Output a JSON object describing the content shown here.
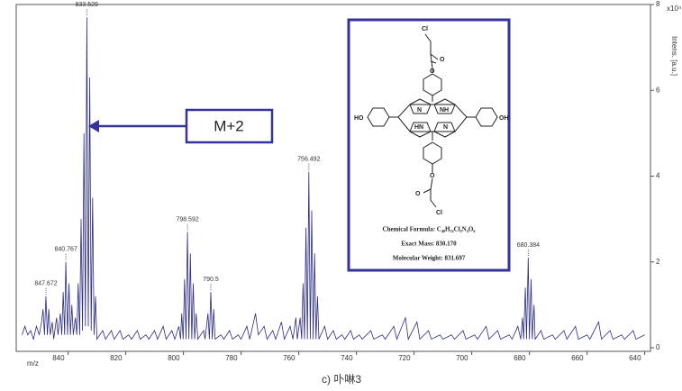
{
  "chart_data": {
    "type": "line",
    "color": "#2b2b80",
    "x": [
      856,
      855,
      854,
      853,
      852,
      851,
      850,
      849.2,
      848.7,
      848.2,
      847.7,
      847.2,
      846.7,
      846.2,
      845.5,
      845,
      844,
      843.5,
      842.7,
      842.2,
      841.7,
      841.2,
      840.8,
      840.2,
      839.7,
      839.2,
      838.7,
      838.2,
      837.5,
      837,
      836.5,
      836,
      835.5,
      835,
      834.5,
      834,
      833.5,
      833,
      832.5,
      832,
      831.5,
      831,
      830.5,
      830,
      828,
      827,
      825,
      824,
      822,
      821,
      819,
      818,
      816,
      815,
      813,
      812,
      810,
      809,
      807,
      806,
      804,
      803,
      801.6,
      801,
      800.6,
      800.1,
      799.6,
      799.1,
      798.6,
      798.1,
      797.6,
      797.1,
      796.6,
      796.1,
      795.6,
      795,
      793,
      792.5,
      791.5,
      791,
      790.5,
      790,
      789.5,
      789,
      787,
      786,
      784,
      783,
      781,
      780,
      778,
      777,
      775,
      774,
      772,
      771,
      769,
      768,
      766,
      765,
      763,
      762,
      761,
      760.5,
      759.5,
      759,
      758.5,
      758,
      757.5,
      757,
      756.5,
      756,
      755.5,
      755,
      754.5,
      754,
      753.5,
      753,
      751,
      750,
      748,
      747,
      745,
      744,
      742,
      741,
      739,
      738,
      735,
      734,
      731,
      730,
      727,
      726,
      723,
      722,
      719,
      718,
      715,
      714,
      711,
      710,
      707,
      706,
      703,
      702,
      699,
      698,
      695,
      694,
      691,
      690,
      687,
      686,
      684,
      683,
      682.4,
      682,
      681.4,
      681,
      680.4,
      680,
      679.4,
      679,
      678.4,
      678,
      676,
      675,
      672,
      671,
      668,
      667,
      664,
      663,
      660,
      659,
      656,
      655,
      652,
      651,
      648,
      647,
      644,
      643,
      640
    ],
    "values": [
      0.3,
      0.5,
      0.3,
      0.4,
      0.2,
      0.5,
      0.3,
      0.6,
      0.9,
      0.3,
      1.2,
      0.3,
      0.9,
      0.3,
      0.6,
      0.2,
      0.7,
      0.3,
      0.8,
      0.3,
      1.3,
      0.3,
      2.0,
      0.3,
      1.5,
      0.3,
      1.0,
      0.3,
      0.7,
      0.3,
      1.5,
      0.3,
      3.0,
      0.4,
      5.0,
      0.5,
      7.7,
      0.5,
      6.3,
      0.4,
      3.5,
      0.3,
      1.2,
      0.2,
      0.4,
      0.2,
      0.4,
      0.2,
      0.4,
      0.2,
      0.3,
      0.2,
      0.4,
      0.2,
      0.3,
      0.2,
      0.4,
      0.2,
      0.5,
      0.2,
      0.4,
      0.2,
      0.5,
      0.2,
      0.8,
      0.2,
      1.6,
      0.2,
      2.7,
      0.2,
      2.2,
      0.2,
      1.5,
      0.2,
      0.8,
      0.2,
      0.4,
      0.2,
      0.8,
      0.2,
      1.3,
      0.2,
      0.9,
      0.2,
      0.3,
      0.2,
      0.4,
      0.2,
      0.3,
      0.2,
      0.5,
      0.2,
      0.8,
      0.3,
      0.5,
      0.2,
      0.4,
      0.2,
      0.6,
      0.2,
      0.5,
      0.2,
      0.7,
      0.2,
      0.7,
      0.2,
      1.5,
      0.2,
      2.8,
      0.2,
      4.1,
      0.2,
      3.2,
      0.2,
      2.2,
      0.2,
      1.2,
      0.2,
      0.5,
      0.2,
      0.4,
      0.2,
      0.3,
      0.2,
      0.4,
      0.2,
      0.3,
      0.2,
      0.4,
      0.2,
      0.3,
      0.2,
      0.5,
      0.2,
      0.7,
      0.2,
      0.6,
      0.2,
      0.4,
      0.2,
      0.3,
      0.2,
      0.3,
      0.2,
      0.4,
      0.2,
      0.3,
      0.2,
      0.5,
      0.2,
      0.4,
      0.2,
      0.3,
      0.2,
      0.5,
      0.2,
      0.7,
      0.2,
      1.4,
      0.2,
      2.1,
      0.2,
      1.6,
      0.2,
      1.0,
      0.2,
      0.4,
      0.2,
      0.3,
      0.2,
      0.4,
      0.2,
      0.5,
      0.2,
      0.3,
      0.2,
      0.6,
      0.2,
      0.4,
      0.2,
      0.3,
      0.2,
      0.4,
      0.2,
      0.3
    ],
    "peak_labels": [
      833.529,
      840.767,
      847.672,
      798.592,
      790.5,
      756.492,
      680.384
    ],
    "xlim": [
      858,
      638
    ],
    "xticks": [
      640,
      660,
      680,
      700,
      720,
      740,
      760,
      780,
      800,
      820,
      840
    ],
    "ylim": [
      0,
      8
    ],
    "yticks": [
      0,
      2,
      4,
      6,
      8
    ],
    "xlabel": "m/z",
    "ylabel": "Intens. [a.u.]",
    "yscale_label": "x10⁴",
    "arrow_label": "M+2",
    "molecule": {
      "labels": [
        "Cl",
        "O",
        "O",
        "N",
        "NH",
        "HN",
        "N",
        "HO",
        "OH",
        "O",
        "O",
        "Cl"
      ],
      "formula": "Chemical Formula: C₄₈H₃₂Cl₂N₄O₆",
      "exact_mass": "Exact Mass: 830.170",
      "molecular_weight": "Molecular Weight: 831.697"
    },
    "caption": "c)  卟啉3"
  }
}
